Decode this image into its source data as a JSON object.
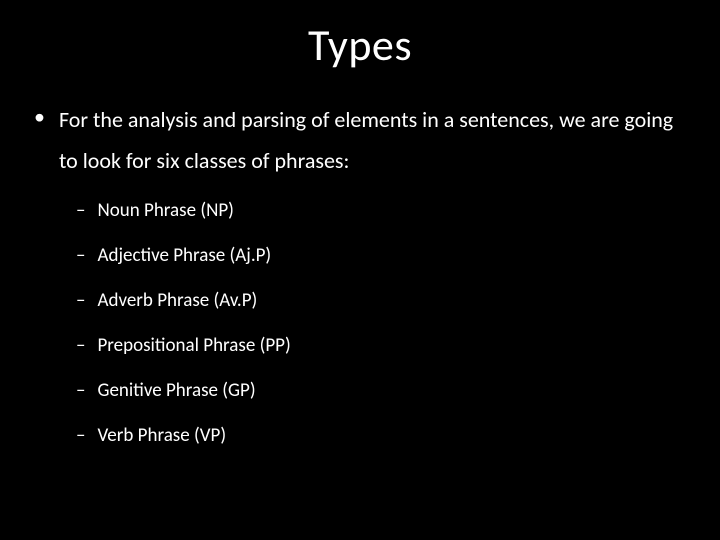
{
  "slide": {
    "title": "Types",
    "background_color": "#000000",
    "text_color": "#ffffff",
    "title_fontsize": 44,
    "body_fontsize": 22,
    "sub_fontsize": 19,
    "main_bullet": {
      "marker": "•",
      "text": "For the analysis and parsing of elements in a sentences, we are going to look for six classes of phrases:"
    },
    "sub_bullets": [
      {
        "marker": "–",
        "text": "Noun Phrase (NP)"
      },
      {
        "marker": "–",
        "text": "Adjective Phrase (Aj.P)"
      },
      {
        "marker": "–",
        "text": "Adverb Phrase (Av.P)"
      },
      {
        "marker": "–",
        "text": "Prepositional Phrase (PP)"
      },
      {
        "marker": "–",
        "text": "Genitive Phrase (GP)"
      },
      {
        "marker": "–",
        "text": "Verb Phrase (VP)"
      }
    ]
  }
}
